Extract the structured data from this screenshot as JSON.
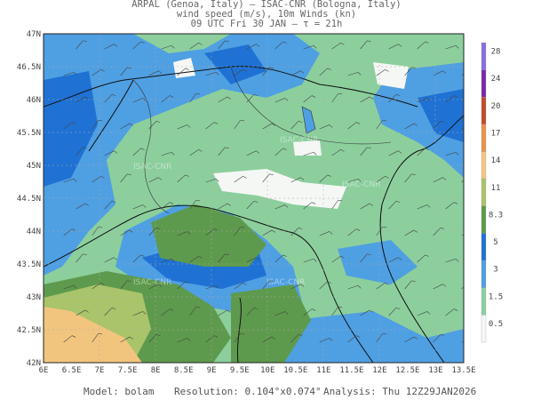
{
  "header": {
    "line1": "ARPAL (Genoa, Italy)  —  ISAC-CNR (Bologna, Italy)",
    "line2": "wind speed (m/s), 10m Winds (kn)",
    "line3": "09 UTC Fri 30 JAN  —  τ = 21h"
  },
  "axes": {
    "lat_labels": [
      "47N",
      "46.5N",
      "46N",
      "45.5N",
      "45N",
      "44.5N",
      "44N",
      "43.5N",
      "43N",
      "42.5N",
      "42N"
    ],
    "lon_labels": [
      "6E",
      "6.5E",
      "7E",
      "7.5E",
      "8E",
      "8.5E",
      "9E",
      "9.5E",
      "10E",
      "10.5E",
      "11E",
      "11.5E",
      "12E",
      "12.5E",
      "13E",
      "13.5E"
    ]
  },
  "colorbar": {
    "labels": [
      "0.5",
      "1.5",
      "3",
      "5",
      "8.3",
      "11",
      "14",
      "17",
      "20",
      "24",
      "28"
    ],
    "colors": [
      "#f5f7f5",
      "#8ccf9d",
      "#4f9fe3",
      "#1f72d4",
      "#5e9a4d",
      "#a9c46a",
      "#f2c57e",
      "#e8944d",
      "#c44a2a",
      "#7a2aa8",
      "#8a6ee0"
    ]
  },
  "watermark": "ISAC-CNR",
  "footer": {
    "model": "Model: bolam",
    "resolution": "Resolution: 0.104°x0.074°",
    "analysis": "Analysis: Thu 12Z29JAN2026"
  }
}
